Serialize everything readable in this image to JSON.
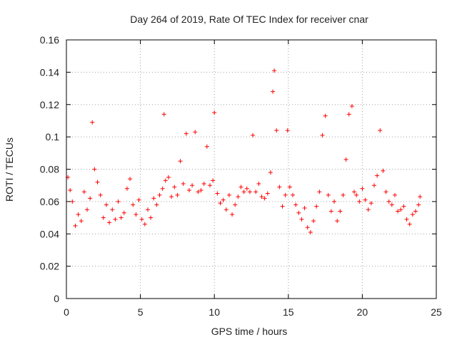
{
  "chart_data": {
    "type": "scatter",
    "title": "Day 264 of 2019, Rate Of TEC Index for receiver cnar",
    "xlabel": "GPS time / hours",
    "ylabel": "ROTI / TECUs",
    "xlim": [
      0,
      25
    ],
    "ylim": [
      0,
      0.16
    ],
    "xticks": [
      0,
      5,
      10,
      15,
      20,
      25
    ],
    "yticks": [
      0,
      0.02,
      0.04,
      0.06,
      0.08,
      0.1,
      0.12,
      0.14,
      0.16
    ],
    "xtick_labels": [
      "0",
      "5",
      "10",
      "15",
      "20",
      "25"
    ],
    "ytick_labels": [
      "0",
      "0.02",
      "0.04",
      "0.06",
      "0.08",
      "0.1",
      "0.12",
      "0.14",
      "0.16"
    ],
    "grid": true,
    "marker": "+",
    "color": "#ff0000",
    "series": [
      {
        "x": [
          0.1,
          0.25,
          0.4,
          0.6,
          0.8,
          1.0,
          1.2,
          1.4,
          1.6,
          1.75,
          1.9,
          2.1,
          2.3,
          2.5,
          2.7,
          2.9,
          3.1,
          3.3,
          3.5,
          3.7,
          3.9,
          4.1,
          4.3,
          4.5,
          4.7,
          4.9,
          5.1,
          5.3,
          5.5,
          5.7,
          5.9,
          6.1,
          6.3,
          6.5,
          6.6,
          6.7,
          6.9,
          7.1,
          7.3,
          7.5,
          7.7,
          7.9,
          8.1,
          8.3,
          8.5,
          8.7,
          8.9,
          9.1,
          9.3,
          9.5,
          9.7,
          9.9,
          10.0,
          10.2,
          10.4,
          10.6,
          10.8,
          11.0,
          11.2,
          11.4,
          11.6,
          11.8,
          12.0,
          12.2,
          12.4,
          12.6,
          12.8,
          13.0,
          13.2,
          13.4,
          13.6,
          13.8,
          13.95,
          14.05,
          14.2,
          14.4,
          14.6,
          14.8,
          14.95,
          15.1,
          15.3,
          15.5,
          15.7,
          15.9,
          16.1,
          16.3,
          16.5,
          16.7,
          16.9,
          17.1,
          17.3,
          17.5,
          17.7,
          17.9,
          18.1,
          18.3,
          18.5,
          18.7,
          18.9,
          19.1,
          19.3,
          19.45,
          19.6,
          19.8,
          20.0,
          20.2,
          20.4,
          20.6,
          20.8,
          21.0,
          21.2,
          21.4,
          21.6,
          21.8,
          22.0,
          22.2,
          22.4,
          22.6,
          22.8,
          23.0,
          23.2,
          23.4,
          23.6,
          23.8,
          23.9
        ],
        "y": [
          0.075,
          0.067,
          0.06,
          0.045,
          0.052,
          0.048,
          0.066,
          0.055,
          0.062,
          0.109,
          0.08,
          0.072,
          0.064,
          0.05,
          0.058,
          0.047,
          0.055,
          0.049,
          0.06,
          0.05,
          0.053,
          0.068,
          0.074,
          0.058,
          0.052,
          0.061,
          0.049,
          0.046,
          0.055,
          0.05,
          0.062,
          0.058,
          0.064,
          0.068,
          0.114,
          0.073,
          0.075,
          0.063,
          0.069,
          0.064,
          0.085,
          0.071,
          0.102,
          0.067,
          0.07,
          0.103,
          0.066,
          0.067,
          0.071,
          0.094,
          0.07,
          0.073,
          0.115,
          0.065,
          0.059,
          0.061,
          0.055,
          0.064,
          0.052,
          0.058,
          0.063,
          0.069,
          0.066,
          0.068,
          0.066,
          0.101,
          0.066,
          0.071,
          0.063,
          0.062,
          0.065,
          0.078,
          0.128,
          0.141,
          0.104,
          0.069,
          0.057,
          0.064,
          0.104,
          0.069,
          0.064,
          0.058,
          0.053,
          0.049,
          0.056,
          0.044,
          0.041,
          0.048,
          0.057,
          0.066,
          0.101,
          0.113,
          0.064,
          0.054,
          0.06,
          0.048,
          0.054,
          0.064,
          0.086,
          0.114,
          0.119,
          0.066,
          0.064,
          0.06,
          0.068,
          0.061,
          0.055,
          0.059,
          0.07,
          0.076,
          0.104,
          0.079,
          0.066,
          0.06,
          0.058,
          0.064,
          0.054,
          0.055,
          0.057,
          0.049,
          0.046,
          0.052,
          0.054,
          0.058,
          0.063
        ]
      }
    ]
  }
}
